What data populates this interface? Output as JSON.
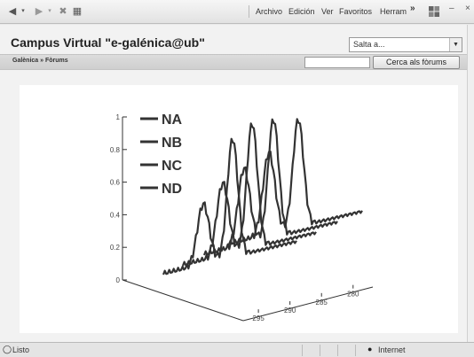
{
  "browser": {
    "menu": [
      "Archivo",
      "Edición",
      "Ver",
      "Favoritos",
      "Herram"
    ],
    "overflow": "»",
    "window_controls": [
      "–",
      "×"
    ]
  },
  "site": {
    "title": "Campus Virtual \"e-galénica@ub\"",
    "jump_select": "Salta a...",
    "breadcrumb": "Galènica » Fòrums",
    "search_input_value": "",
    "search_button": "Cerca als fòrums"
  },
  "status": {
    "text": "Listo",
    "zone": "Internet"
  },
  "chart_data": {
    "type": "line",
    "projection": "3d-waterfall",
    "legend_placement": "top-left",
    "series": [
      {
        "name": "NA"
      },
      {
        "name": "NB"
      },
      {
        "name": "NC"
      },
      {
        "name": "ND"
      }
    ],
    "z_ticks": [
      "0",
      "0.2",
      "0.4",
      "0.6",
      "0.8",
      "1"
    ],
    "z_range": [
      0,
      1
    ],
    "x_ticks": [
      "295",
      "290",
      "285",
      "280"
    ],
    "grid": false
  }
}
